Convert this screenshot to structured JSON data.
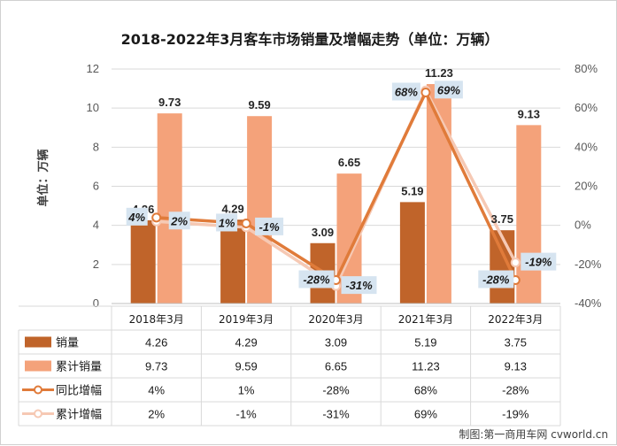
{
  "chart_data": {
    "type": "bar",
    "title": "2018-2022年3月客车市场销量及增幅走势（单位：万辆）",
    "ylabel": "单位：万辆",
    "categories": [
      "2018年3月",
      "2019年3月",
      "2020年3月",
      "2021年3月",
      "2022年3月"
    ],
    "ylim": [
      0,
      12
    ],
    "y_ticks": [
      "0",
      "2",
      "4",
      "6",
      "8",
      "10",
      "12"
    ],
    "y2lim": [
      -40,
      80
    ],
    "y2_ticks": [
      "-40%",
      "-20%",
      "0%",
      "20%",
      "40%",
      "60%",
      "80%"
    ],
    "series": [
      {
        "name": "销量",
        "type": "bar",
        "axis": "left",
        "color": "#C0642A",
        "values": [
          4.26,
          4.29,
          3.09,
          5.19,
          3.75
        ],
        "labels": [
          "4.26",
          "4.29",
          "3.09",
          "5.19",
          "3.75"
        ]
      },
      {
        "name": "累计销量",
        "type": "bar",
        "axis": "left",
        "color": "#F4A27A",
        "values": [
          9.73,
          9.59,
          6.65,
          11.23,
          9.13
        ],
        "labels": [
          "9.73",
          "9.59",
          "6.65",
          "11.23",
          "9.13"
        ]
      },
      {
        "name": "同比增幅",
        "type": "line",
        "axis": "right",
        "color": "#E07B3A",
        "values": [
          4,
          1,
          -28,
          68,
          -28
        ],
        "labels": [
          "4%",
          "1%",
          "-28%",
          "68%",
          "-28%"
        ]
      },
      {
        "name": "累计增幅",
        "type": "line",
        "axis": "right",
        "color": "#F6C9B4",
        "values": [
          2,
          -1,
          -31,
          69,
          -19
        ],
        "labels": [
          "2%",
          "-1%",
          "-31%",
          "69%",
          "-19%"
        ]
      }
    ],
    "grid": true,
    "legend": "data table below chart",
    "label_box_color": "#D6E4F0"
  },
  "credit": "制图:第一商用车网 cvworld.cn"
}
